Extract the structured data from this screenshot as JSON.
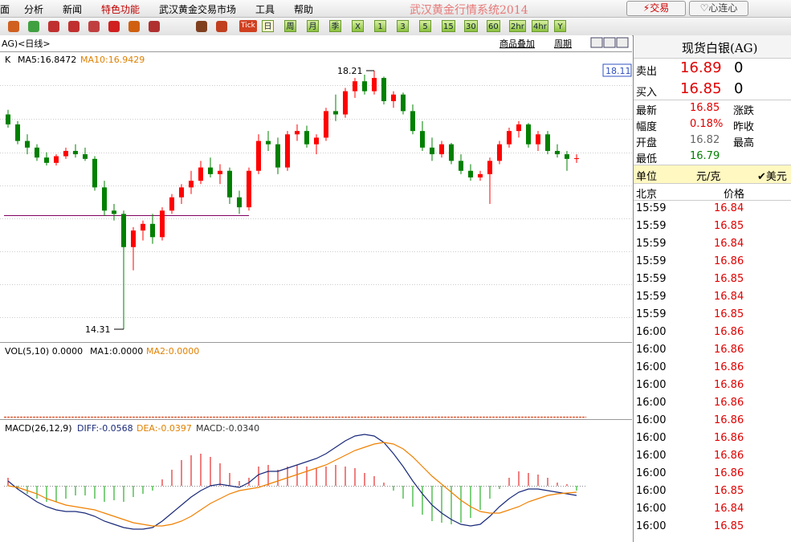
{
  "menu": [
    "面",
    "分析",
    "新闻",
    "特色功能",
    "武汉黄金交易市场",
    "工具",
    "帮助"
  ],
  "app_title": "武汉黄金行情系统2014",
  "buttons": [
    "交易",
    "心连心"
  ],
  "toolbar": {
    "tick": "Tick",
    "periods": [
      "日",
      "周",
      "月",
      "季",
      "X",
      "1",
      "3",
      "5",
      "15",
      "30",
      "60",
      "2hr",
      "4hr",
      "Y"
    ]
  },
  "chart": {
    "symbol": "AG)<日线>",
    "links": [
      "商品叠加",
      "周期"
    ],
    "k_label": "K",
    "ma5": "MA5:16.8472",
    "ma10": "MA10:16.9429",
    "price_box": 18.11,
    "candles": [
      [
        17.55,
        17.62,
        17.35,
        17.4
      ],
      [
        17.4,
        17.45,
        17.1,
        17.15
      ],
      [
        17.15,
        17.25,
        16.95,
        17.05
      ],
      [
        17.05,
        17.1,
        16.85,
        16.9
      ],
      [
        16.9,
        16.98,
        16.78,
        16.82
      ],
      [
        16.82,
        16.95,
        16.78,
        16.92
      ],
      [
        16.92,
        17.05,
        16.88,
        17.0
      ],
      [
        17.0,
        17.1,
        16.9,
        16.95
      ],
      [
        16.95,
        17.05,
        16.85,
        16.88
      ],
      [
        16.88,
        16.92,
        16.4,
        16.45
      ],
      [
        16.45,
        16.55,
        16.02,
        16.1
      ],
      [
        16.1,
        16.2,
        15.95,
        16.05
      ],
      [
        16.05,
        16.1,
        14.31,
        15.55
      ],
      [
        15.55,
        15.85,
        15.2,
        15.8
      ],
      [
        15.8,
        15.95,
        15.65,
        15.9
      ],
      [
        15.9,
        16.05,
        15.6,
        15.7
      ],
      [
        15.7,
        16.15,
        15.65,
        16.1
      ],
      [
        16.1,
        16.35,
        16.05,
        16.3
      ],
      [
        16.3,
        16.5,
        16.2,
        16.45
      ],
      [
        16.45,
        16.7,
        16.35,
        16.55
      ],
      [
        16.55,
        16.85,
        16.5,
        16.75
      ],
      [
        16.75,
        16.9,
        16.6,
        16.65
      ],
      [
        16.65,
        16.8,
        16.5,
        16.7
      ],
      [
        16.7,
        16.75,
        16.2,
        16.3
      ],
      [
        16.3,
        16.4,
        16.05,
        16.15
      ],
      [
        16.15,
        16.75,
        16.1,
        16.7
      ],
      [
        16.7,
        17.25,
        16.65,
        17.15
      ],
      [
        17.15,
        17.3,
        17.0,
        17.1
      ],
      [
        17.1,
        17.2,
        16.65,
        16.75
      ],
      [
        16.75,
        17.3,
        16.7,
        17.25
      ],
      [
        17.25,
        17.4,
        17.15,
        17.3
      ],
      [
        17.3,
        17.38,
        17.05,
        17.1
      ],
      [
        17.1,
        17.25,
        16.95,
        17.2
      ],
      [
        17.2,
        17.65,
        17.15,
        17.6
      ],
      [
        17.6,
        17.85,
        17.45,
        17.55
      ],
      [
        17.55,
        17.95,
        17.5,
        17.9
      ],
      [
        17.9,
        18.1,
        17.8,
        18.05
      ],
      [
        18.05,
        18.15,
        17.85,
        17.9
      ],
      [
        17.9,
        18.21,
        17.85,
        18.1
      ],
      [
        18.1,
        18.12,
        17.7,
        17.75
      ],
      [
        17.75,
        17.9,
        17.65,
        17.85
      ],
      [
        17.85,
        17.88,
        17.55,
        17.6
      ],
      [
        17.6,
        17.7,
        17.25,
        17.3
      ],
      [
        17.3,
        17.45,
        17.0,
        17.05
      ],
      [
        17.05,
        17.2,
        16.85,
        16.95
      ],
      [
        16.95,
        17.15,
        16.9,
        17.1
      ],
      [
        17.1,
        17.12,
        16.8,
        16.85
      ],
      [
        16.85,
        16.95,
        16.65,
        16.7
      ],
      [
        16.7,
        16.8,
        16.55,
        16.6
      ],
      [
        16.6,
        16.7,
        16.55,
        16.65
      ],
      [
        16.65,
        16.9,
        16.2,
        16.85
      ],
      [
        16.85,
        17.15,
        16.8,
        17.1
      ],
      [
        17.1,
        17.35,
        17.05,
        17.3
      ],
      [
        17.3,
        17.45,
        17.2,
        17.4
      ],
      [
        17.4,
        17.42,
        17.05,
        17.1
      ],
      [
        17.1,
        17.3,
        17.0,
        17.25
      ],
      [
        17.25,
        17.3,
        16.95,
        17.0
      ],
      [
        17.0,
        17.1,
        16.9,
        16.95
      ],
      [
        16.95,
        17.0,
        16.7,
        16.88
      ],
      [
        16.88,
        16.95,
        16.82,
        16.89
      ]
    ],
    "vol": {
      "label": "VOL(5,10) 0.0000",
      "ma1": "MA1:0.0000",
      "ma2": "MA2:0.0000"
    },
    "macd": {
      "label": "MACD(26,12,9)",
      "diff": "DIFF:-0.0568",
      "dea": "DEA:-0.0397",
      "macd": "MACD:-0.0340",
      "hist": [
        0.05,
        -0.02,
        -0.05,
        -0.08,
        -0.1,
        -0.1,
        -0.08,
        -0.06,
        -0.06,
        -0.08,
        -0.1,
        -0.09,
        -0.1,
        -0.07,
        -0.05,
        -0.03,
        0.04,
        0.1,
        0.16,
        0.19,
        0.2,
        0.18,
        0.14,
        0.08,
        0.03,
        0.05,
        0.12,
        0.13,
        0.1,
        0.12,
        0.13,
        0.12,
        0.11,
        0.12,
        0.13,
        0.12,
        0.11,
        0.08,
        0.06,
        0.02,
        -0.03,
        -0.08,
        -0.13,
        -0.18,
        -0.22,
        -0.23,
        -0.24,
        -0.23,
        -0.2,
        -0.15,
        -0.08,
        -0.02,
        0.05,
        0.09,
        0.08,
        0.07,
        0.05,
        0.02,
        0.01,
        -0.03
      ],
      "dif_line": [
        0.03,
        -0.02,
        -0.06,
        -0.1,
        -0.13,
        -0.15,
        -0.16,
        -0.16,
        -0.17,
        -0.19,
        -0.22,
        -0.24,
        -0.26,
        -0.27,
        -0.27,
        -0.26,
        -0.22,
        -0.17,
        -0.12,
        -0.07,
        -0.03,
        0.0,
        0.01,
        0.0,
        -0.01,
        0.02,
        0.07,
        0.09,
        0.09,
        0.11,
        0.13,
        0.15,
        0.17,
        0.2,
        0.24,
        0.28,
        0.31,
        0.32,
        0.31,
        0.27,
        0.2,
        0.12,
        0.03,
        -0.05,
        -0.12,
        -0.17,
        -0.21,
        -0.24,
        -0.25,
        -0.24,
        -0.19,
        -0.13,
        -0.08,
        -0.04,
        -0.02,
        -0.02,
        -0.03,
        -0.04,
        -0.05,
        -0.06
      ],
      "dea_line": [
        0.0,
        -0.01,
        -0.03,
        -0.05,
        -0.08,
        -0.1,
        -0.12,
        -0.13,
        -0.14,
        -0.15,
        -0.17,
        -0.19,
        -0.21,
        -0.23,
        -0.24,
        -0.25,
        -0.25,
        -0.24,
        -0.22,
        -0.19,
        -0.15,
        -0.11,
        -0.08,
        -0.05,
        -0.03,
        -0.02,
        -0.01,
        0.01,
        0.03,
        0.05,
        0.07,
        0.09,
        0.11,
        0.13,
        0.16,
        0.19,
        0.22,
        0.24,
        0.26,
        0.27,
        0.26,
        0.23,
        0.18,
        0.12,
        0.06,
        0.01,
        -0.04,
        -0.09,
        -0.13,
        -0.16,
        -0.17,
        -0.17,
        -0.15,
        -0.13,
        -0.1,
        -0.08,
        -0.06,
        -0.05,
        -0.045,
        -0.04
      ]
    }
  },
  "quote": {
    "title": "现货白银(AG)",
    "sell": {
      "label": "卖出",
      "price": 16.89,
      "qty": 0
    },
    "buy": {
      "label": "买入",
      "price": 16.85,
      "qty": 0
    },
    "stats": [
      [
        "最新",
        16.85,
        "涨跌"
      ],
      [
        "幅度",
        "0.18%",
        "昨收"
      ],
      [
        "开盘",
        16.82,
        "最高"
      ],
      [
        "最低",
        16.79
      ]
    ],
    "unit": {
      "label": "单位",
      "value": "元/克",
      "currency": "美元"
    },
    "ticks_header": [
      "北京",
      "价格"
    ],
    "ticks": [
      [
        "15:59",
        16.84
      ],
      [
        "15:59",
        16.85
      ],
      [
        "15:59",
        16.84
      ],
      [
        "15:59",
        16.86
      ],
      [
        "15:59",
        16.85
      ],
      [
        "15:59",
        16.84
      ],
      [
        "15:59",
        16.85
      ],
      [
        "16:00",
        16.86
      ],
      [
        "16:00",
        16.86
      ],
      [
        "16:00",
        16.86
      ],
      [
        "16:00",
        16.86
      ],
      [
        "16:00",
        16.86
      ],
      [
        "16:00",
        16.86
      ],
      [
        "16:00",
        16.86
      ],
      [
        "16:00",
        16.86
      ],
      [
        "16:00",
        16.86
      ],
      [
        "16:00",
        16.85
      ],
      [
        "16:00",
        16.84
      ],
      [
        "16:00",
        16.85
      ]
    ]
  }
}
